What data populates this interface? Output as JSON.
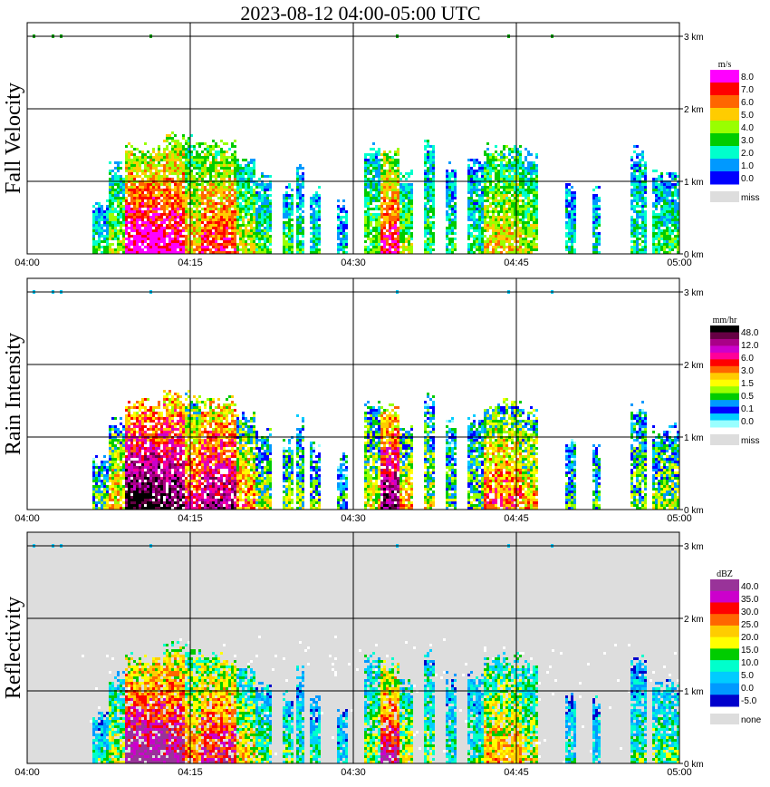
{
  "title": "2023-08-12   04:00-05:00 UTC",
  "chart_data": [
    {
      "type": "heatmap",
      "panel": "Fall Velocity",
      "ylabel": "Fall Velocity",
      "x_ticks": [
        "04:00",
        "04:15",
        "04:30",
        "04:45",
        "05:00"
      ],
      "y_ticks": [
        "0 km",
        "1 km",
        "2 km",
        "3 km"
      ],
      "xlim": [
        "04:00",
        "05:00"
      ],
      "ylim_km": [
        0,
        3
      ],
      "grid": true,
      "colorbar": {
        "unit": "m/s",
        "labels": [
          "8.0",
          "7.0",
          "6.0",
          "5.0",
          "4.0",
          "3.0",
          "2.0",
          "1.0",
          "0.0"
        ],
        "colors": [
          "#ff00ff",
          "#ff0000",
          "#ff6600",
          "#ffcc00",
          "#99ff00",
          "#00cc00",
          "#00ffcc",
          "#0099ff",
          "#0000ff"
        ],
        "miss_label": "miss",
        "miss_color": "#dddddd"
      }
    },
    {
      "type": "heatmap",
      "panel": "Rain Intensity",
      "ylabel": "Rain Intensity",
      "x_ticks": [
        "04:00",
        "04:15",
        "04:30",
        "04:45",
        "05:00"
      ],
      "y_ticks": [
        "0 km",
        "1 km",
        "2 km",
        "3 km"
      ],
      "xlim": [
        "04:00",
        "05:00"
      ],
      "ylim_km": [
        0,
        3
      ],
      "grid": true,
      "colorbar": {
        "unit": "mm/hr",
        "labels": [
          "48.0",
          "12.0",
          "6.0",
          "3.0",
          "1.5",
          "0.5",
          "0.1",
          "0.0"
        ],
        "colors": [
          "#000000",
          "#660044",
          "#aa0088",
          "#cc00cc",
          "#ff0099",
          "#ff0000",
          "#ff6600",
          "#ffcc00",
          "#ffff00",
          "#99ff00",
          "#00cc00",
          "#0099ff",
          "#0000ff",
          "#00ccff",
          "#99ffff"
        ],
        "miss_label": "miss",
        "miss_color": "#dddddd"
      }
    },
    {
      "type": "heatmap",
      "panel": "Reflectivity",
      "ylabel": "Reflectivity",
      "x_ticks": [
        "04:00",
        "04:15",
        "04:30",
        "04:45",
        "05:00"
      ],
      "y_ticks": [
        "0 km",
        "1 km",
        "2 km",
        "3 km"
      ],
      "xlim": [
        "04:00",
        "05:00"
      ],
      "ylim_km": [
        0,
        3
      ],
      "grid": true,
      "colorbar": {
        "unit": "dBZ",
        "labels": [
          "40.0",
          "35.0",
          "30.0",
          "25.0",
          "20.0",
          "15.0",
          "10.0",
          "5.0",
          "0.0",
          "-5.0"
        ],
        "colors": [
          "#993399",
          "#cc00cc",
          "#ff0000",
          "#ff6600",
          "#ffcc00",
          "#ffff00",
          "#00cc00",
          "#00ffcc",
          "#00ccff",
          "#0099ff",
          "#0000cc"
        ],
        "miss_label": "none",
        "miss_color": "#dddddd"
      }
    }
  ]
}
